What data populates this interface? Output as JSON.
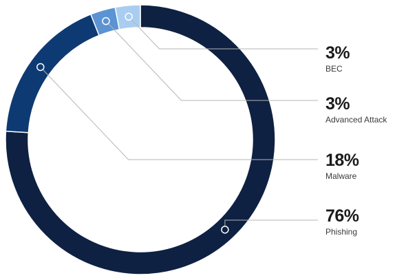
{
  "chart_data": {
    "type": "pie",
    "subtype": "donut",
    "value_unit": "%",
    "categories": [
      "Phishing",
      "Malware",
      "Advanced Attack",
      "BEC"
    ],
    "values": [
      76,
      18,
      3,
      3
    ],
    "labels": [
      {
        "value_text": "3%",
        "name": "BEC"
      },
      {
        "value_text": "3%",
        "name": "Advanced Attack"
      },
      {
        "value_text": "18%",
        "name": "Malware"
      },
      {
        "value_text": "76%",
        "name": "Phishing"
      }
    ],
    "colors": [
      "#0f2142",
      "#0e3a73",
      "#5b93d3",
      "#a9cdf0"
    ],
    "leader_color": "#b5b5b5",
    "legend": "right",
    "title": ""
  }
}
